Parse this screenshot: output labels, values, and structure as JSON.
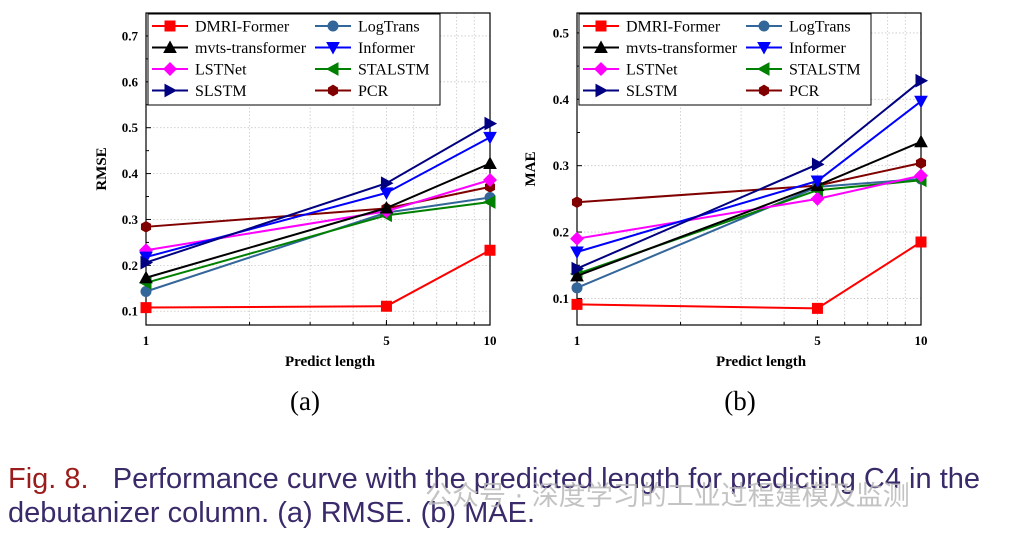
{
  "chart_data": [
    {
      "type": "line",
      "panel_label": "(a)",
      "ylabel": "RMSE",
      "xlabel": "Predict length",
      "x": [
        1,
        5,
        10
      ],
      "xscale": "log",
      "xticks": [
        "1",
        "5",
        "10"
      ],
      "ylim": [
        0.07,
        0.75
      ],
      "yticks": [
        "0.1",
        "0.2",
        "0.3",
        "0.4",
        "0.5",
        "0.6",
        "0.7"
      ],
      "grid": true,
      "series": [
        {
          "name": "DMRI-Former",
          "values": [
            0.108,
            0.111,
            0.233
          ]
        },
        {
          "name": "LogTrans",
          "values": [
            0.143,
            0.315,
            0.348
          ]
        },
        {
          "name": "mvts-transformer",
          "values": [
            0.173,
            0.325,
            0.422
          ]
        },
        {
          "name": "Informer",
          "values": [
            0.218,
            0.358,
            0.479
          ]
        },
        {
          "name": "LSTNet",
          "values": [
            0.233,
            0.318,
            0.386
          ]
        },
        {
          "name": "STALSTM",
          "values": [
            0.162,
            0.309,
            0.338
          ]
        },
        {
          "name": "SLSTM",
          "values": [
            0.206,
            0.379,
            0.509
          ]
        },
        {
          "name": "PCR",
          "values": [
            0.284,
            0.324,
            0.371
          ]
        }
      ]
    },
    {
      "type": "line",
      "panel_label": "(b)",
      "ylabel": "MAE",
      "xlabel": "Predict length",
      "x": [
        1,
        5,
        10
      ],
      "xscale": "log",
      "xticks": [
        "1",
        "5",
        "10"
      ],
      "ylim": [
        0.06,
        0.53
      ],
      "yticks": [
        "0.1",
        "0.2",
        "0.3",
        "0.4",
        "0.5"
      ],
      "grid": true,
      "series": [
        {
          "name": "DMRI-Former",
          "values": [
            0.091,
            0.085,
            0.185
          ]
        },
        {
          "name": "LogTrans",
          "values": [
            0.116,
            0.268,
            0.28
          ]
        },
        {
          "name": "mvts-transformer",
          "values": [
            0.134,
            0.27,
            0.336
          ]
        },
        {
          "name": "Informer",
          "values": [
            0.17,
            0.277,
            0.397
          ]
        },
        {
          "name": "LSTNet",
          "values": [
            0.19,
            0.25,
            0.285
          ]
        },
        {
          "name": "STALSTM",
          "values": [
            0.137,
            0.263,
            0.278
          ]
        },
        {
          "name": "SLSTM",
          "values": [
            0.145,
            0.302,
            0.428
          ]
        },
        {
          "name": "PCR",
          "values": [
            0.245,
            0.27,
            0.304
          ]
        }
      ]
    }
  ],
  "styles": {
    "DMRI-Former": {
      "color": "#ff0000",
      "marker": "square"
    },
    "LogTrans": {
      "color": "#336699",
      "marker": "circle"
    },
    "mvts-transformer": {
      "color": "#000000",
      "marker": "triangle-up"
    },
    "Informer": {
      "color": "#0000ff",
      "marker": "triangle-down"
    },
    "LSTNet": {
      "color": "#ff00ff",
      "marker": "diamond"
    },
    "STALSTM": {
      "color": "#008000",
      "marker": "triangle-left"
    },
    "SLSTM": {
      "color": "#000080",
      "marker": "triangle-right"
    },
    "PCR": {
      "color": "#800000",
      "marker": "hexagon"
    }
  },
  "caption": {
    "label": "Fig. 8.",
    "text": "Performance curve with the predicted length for predicting C4 in the debutanizer column. (a) RMSE. (b) MAE."
  },
  "watermark": "公众号 · 深度学习的工业过程建模及监测"
}
